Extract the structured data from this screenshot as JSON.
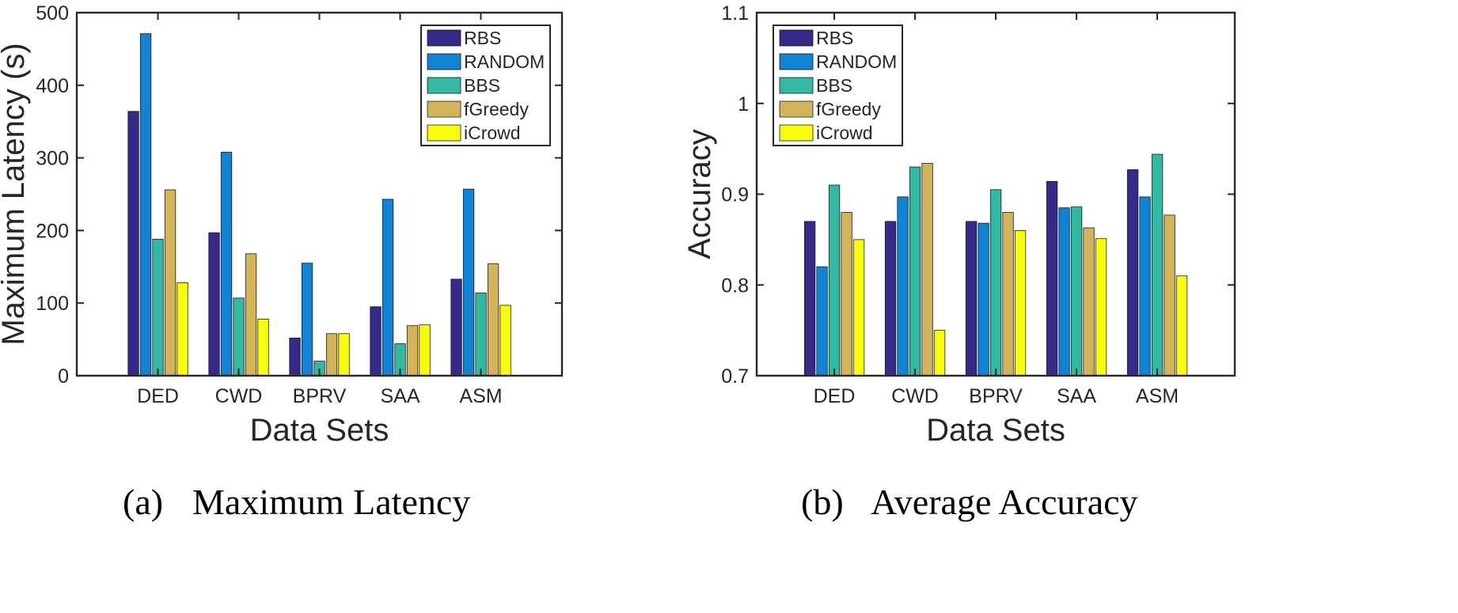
{
  "series_colors": {
    "RBS": "#352a87",
    "RANDOM": "#1283d4",
    "BBS": "#33b8a1",
    "fGreedy": "#d3b45a",
    "iCrowd": "#f9fb0e"
  },
  "chart_data": [
    {
      "type": "bar",
      "title": "",
      "caption_label": "(a)",
      "caption_text": "Maximum Latency",
      "xlabel": "Data Sets",
      "ylabel": "Maximum Latency (s)",
      "categories": [
        "DED",
        "CWD",
        "BPRV",
        "SAA",
        "ASM"
      ],
      "ylim": [
        0,
        500
      ],
      "yticks": [
        0,
        100,
        200,
        300,
        400,
        500
      ],
      "ytick_labels": [
        "0",
        "100",
        "200",
        "300",
        "400",
        "500"
      ],
      "legend_position": "top-right",
      "series": [
        {
          "name": "RBS",
          "values": [
            364,
            197,
            52,
            95,
            133
          ]
        },
        {
          "name": "RANDOM",
          "values": [
            471,
            308,
            155,
            243,
            257
          ]
        },
        {
          "name": "BBS",
          "values": [
            188,
            107,
            20,
            44,
            114
          ]
        },
        {
          "name": "fGreedy",
          "values": [
            256,
            168,
            58,
            69,
            154
          ]
        },
        {
          "name": "iCrowd",
          "values": [
            128,
            78,
            58,
            70,
            97
          ]
        }
      ]
    },
    {
      "type": "bar",
      "title": "",
      "caption_label": "(b)",
      "caption_text": "Average Accuracy",
      "xlabel": "Data Sets",
      "ylabel": "Accuracy",
      "categories": [
        "DED",
        "CWD",
        "BPRV",
        "SAA",
        "ASM"
      ],
      "ylim": [
        0.7,
        1.1
      ],
      "yticks": [
        0.7,
        0.8,
        0.9,
        1.0,
        1.1
      ],
      "ytick_labels": [
        "0.7",
        "0.8",
        "0.9",
        "1",
        "1.1"
      ],
      "legend_position": "top-left",
      "series": [
        {
          "name": "RBS",
          "values": [
            0.87,
            0.87,
            0.87,
            0.914,
            0.927
          ]
        },
        {
          "name": "RANDOM",
          "values": [
            0.82,
            0.897,
            0.868,
            0.885,
            0.897
          ]
        },
        {
          "name": "BBS",
          "values": [
            0.91,
            0.93,
            0.905,
            0.886,
            0.944
          ]
        },
        {
          "name": "fGreedy",
          "values": [
            0.88,
            0.934,
            0.88,
            0.863,
            0.877
          ]
        },
        {
          "name": "iCrowd",
          "values": [
            0.85,
            0.75,
            0.86,
            0.851,
            0.81
          ]
        }
      ]
    }
  ]
}
